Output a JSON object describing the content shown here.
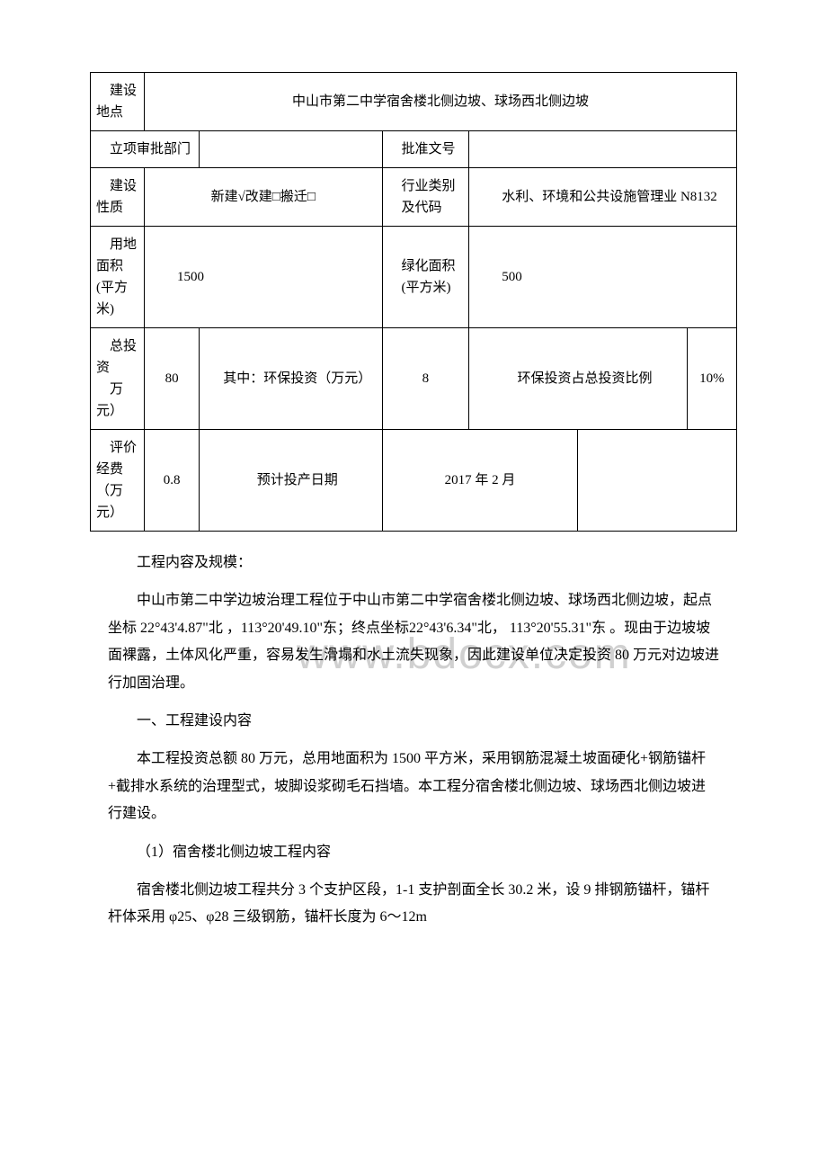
{
  "table": {
    "row1": {
      "label": "建设地点",
      "value": "中山市第二中学宿舍楼北侧边坡、球场西北侧边坡"
    },
    "row2": {
      "label1": "立项审批部门",
      "value1": "",
      "label2": "批准文号",
      "value2": ""
    },
    "row3": {
      "label1": "建设性质",
      "value1": "新建√改建□搬迁□",
      "label2_line1": "行业类别",
      "label2_line2": "及代码",
      "value2": "水利、环境和公共设施管理业 N8132"
    },
    "row4": {
      "label1": "用地面积(平方米)",
      "value1": "1500",
      "label2_line1": "绿化面积",
      "label2_line2": "(平方米)",
      "value2": "500"
    },
    "row5": {
      "label1_line1": "总投资",
      "label1_line2": "万元）",
      "value1": "80",
      "label2": "其中：环保投资（万元）",
      "value2": "8",
      "label3": "环保投资占总投资比例",
      "value3": "10%"
    },
    "row6": {
      "label1": "评价经费（万元）",
      "value1": "0.8",
      "label2": "预计投产日期",
      "value2": "2017 年 2 月"
    }
  },
  "content": {
    "heading": "工程内容及规模：",
    "para1": "中山市第二中学边坡治理工程位于中山市第二中学宿舍楼北侧边坡、球场西北侧边坡，起点坐标 22°43'4.87\"北 ，113°20'49.10\"东；终点坐标22°43'6.34\"北， 113°20'55.31\"东 。现由于边坡坡面裸露，土体风化严重，容易发生滑塌和水土流失现象，因此建设单位决定投资 80 万元对边坡进行加固治理。",
    "section1": "一、工程建设内容",
    "para2": "本工程投资总额 80 万元，总用地面积为 1500 平方米，采用钢筋混凝土坡面硬化+钢筋锚杆+截排水系统的治理型式，坡脚设浆砌毛石挡墙。本工程分宿舍楼北侧边坡、球场西北侧边坡进行建设。",
    "item1": "（1）宿舍楼北侧边坡工程内容",
    "para3": "宿舍楼北侧边坡工程共分 3 个支护区段，1-1 支护剖面全长 30.2 米，设 9 排钢筋锚杆，锚杆杆体采用 φ25、φ28 三级钢筋，锚杆长度为 6～12m"
  },
  "watermark": "www.bdocx.com",
  "styling": {
    "background_color": "#ffffff",
    "text_color": "#000000",
    "border_color": "#000000",
    "watermark_color": "#d0d0d0",
    "font_family": "SimSun",
    "body_font_size": 16,
    "table_font_size": 15,
    "watermark_font_size": 48
  }
}
